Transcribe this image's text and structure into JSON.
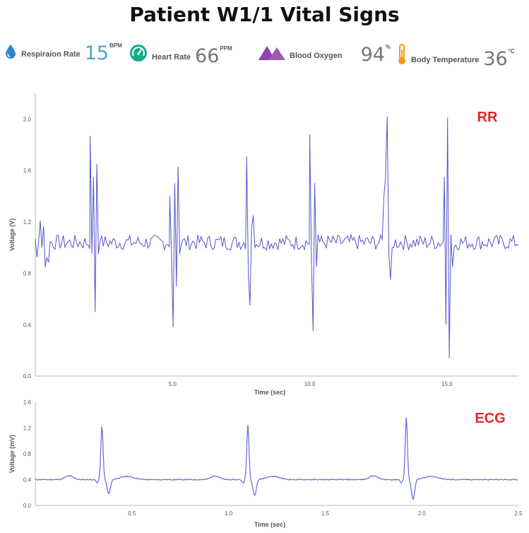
{
  "title": "Patient W1/1 Vital Signs",
  "vitals": [
    {
      "label": "Respiraion Rate",
      "value": "15",
      "unit": "BPM",
      "icon": "water-drop-icon",
      "color": "#2e86c9"
    },
    {
      "label": "Heart Rate",
      "value": "66",
      "unit": "PPM",
      "icon": "gauge-icon",
      "color": "#1aab8a"
    },
    {
      "label": "Blood Oxygen",
      "value": "94",
      "unit": "%",
      "icon": "mountains-icon",
      "color": "#8e44ad"
    },
    {
      "label": "Body Temperature",
      "value": "36",
      "unit": "°C",
      "icon": "thermometer-icon",
      "color": "#f39c12"
    }
  ],
  "chart_data": [
    {
      "type": "line",
      "title": "RR",
      "xlabel": "Time (sec)",
      "ylabel": "Voltage (V)",
      "xlim": [
        0,
        17.6
      ],
      "ylim": [
        0,
        2.2
      ],
      "xticks": [
        5.0,
        10.0,
        15.0
      ],
      "yticks": [
        0.0,
        0.4,
        0.8,
        1.2,
        1.6,
        2.0
      ],
      "xtick_labels": [
        "5.0",
        "10.0",
        "15.0"
      ],
      "ytick_labels": [
        "0.0",
        "0.4",
        "0.8",
        "1.2",
        "1.6",
        "2.0"
      ],
      "grid": false,
      "title_color": "#e8262a",
      "line_color": "#5555cc",
      "baseline": 1.04,
      "peaks": [
        {
          "t": 2.0,
          "values": [
            1.87,
            0.95,
            1.55,
            0.5,
            1.65,
            0.95,
            1.05
          ]
        },
        {
          "t": 4.9,
          "values": [
            1.4,
            0.95,
            0.38,
            1.5,
            0.7,
            1.63,
            0.95
          ]
        },
        {
          "t": 7.7,
          "values": [
            1.71,
            0.8,
            0.55,
            1.15,
            1.25,
            1.0
          ]
        },
        {
          "t": 10.0,
          "values": [
            1.88,
            0.9,
            0.35,
            1.5,
            0.85,
            1.1
          ]
        },
        {
          "t": 12.7,
          "values": [
            1.4,
            1.55,
            2.02,
            0.95,
            0.75,
            1.0
          ]
        },
        {
          "t": 14.9,
          "values": [
            1.55,
            0.4,
            2.01,
            0.14,
            1.1,
            0.85,
            1.0
          ]
        }
      ]
    },
    {
      "type": "line",
      "title": "ECG",
      "xlabel": "Time (sec)",
      "ylabel": "Voltage (mV)",
      "xlim": [
        0,
        2.5
      ],
      "ylim": [
        0,
        1.6
      ],
      "xticks": [
        0.5,
        1.0,
        1.5,
        2.0,
        2.5
      ],
      "yticks": [
        0.0,
        0.4,
        0.8,
        1.2,
        1.6
      ],
      "xtick_labels": [
        "0.5",
        "1.0",
        "1.5",
        "2.0",
        "2.5"
      ],
      "ytick_labels": [
        "0.0",
        "0.4",
        "0.8",
        "1.2",
        "1.6"
      ],
      "grid": false,
      "title_color": "#e8262a",
      "line_color": "#6666dd",
      "baseline": 0.4,
      "beats": [
        {
          "t": 0.345,
          "peak": 1.23,
          "trough": 0.18
        },
        {
          "t": 1.1,
          "peak": 1.25,
          "trough": 0.16
        },
        {
          "t": 1.92,
          "peak": 1.36,
          "trough": 0.1
        }
      ]
    }
  ]
}
